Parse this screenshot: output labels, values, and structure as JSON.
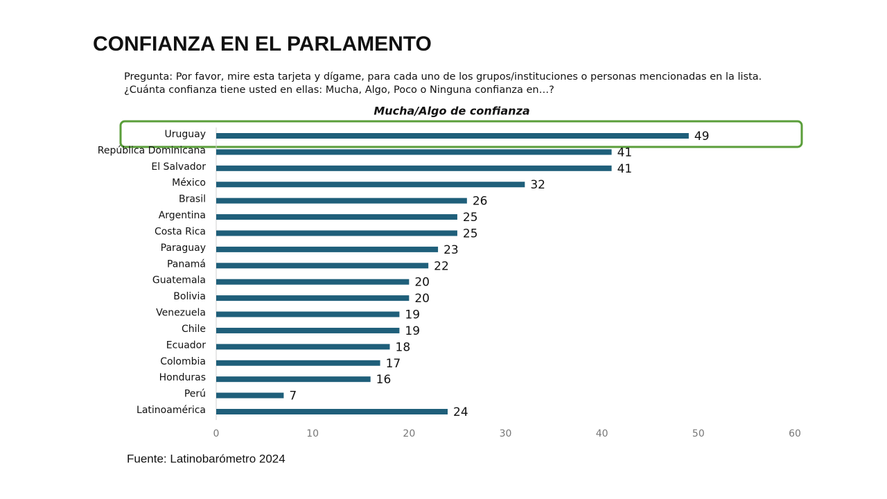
{
  "chart_data": {
    "type": "bar",
    "orientation": "horizontal",
    "title": "CONFIANZA EN EL PARLAMENTO",
    "subtitle": [
      "Pregunta: Por favor, mire esta tarjeta y dígame, para cada uno de los grupos/instituciones o personas mencionadas en la lista.",
      "¿Cuánta confianza tiene usted en ellas: Mucha, Algo, Poco o Ninguna confianza en…?"
    ],
    "chart_title": "Mucha/Algo de confianza",
    "categories": [
      "Uruguay",
      "República Dominicana",
      "El Salvador",
      "México",
      "Brasil",
      "Argentina",
      "Costa Rica",
      "Paraguay",
      "Panamá",
      "Guatemala",
      "Bolivia",
      "Venezuela",
      "Chile",
      "Ecuador",
      "Colombia",
      "Honduras",
      "Perú",
      "Latinoamérica"
    ],
    "values": [
      49,
      41,
      41,
      32,
      26,
      25,
      25,
      23,
      22,
      20,
      20,
      19,
      19,
      18,
      17,
      16,
      7,
      24
    ],
    "color": "#1f5f7a",
    "xlim": [
      0,
      60
    ],
    "xticks": [
      0,
      10,
      20,
      30,
      40,
      50,
      60
    ],
    "grid": false,
    "source": "Fuente: Latinobarómetro 2024"
  }
}
